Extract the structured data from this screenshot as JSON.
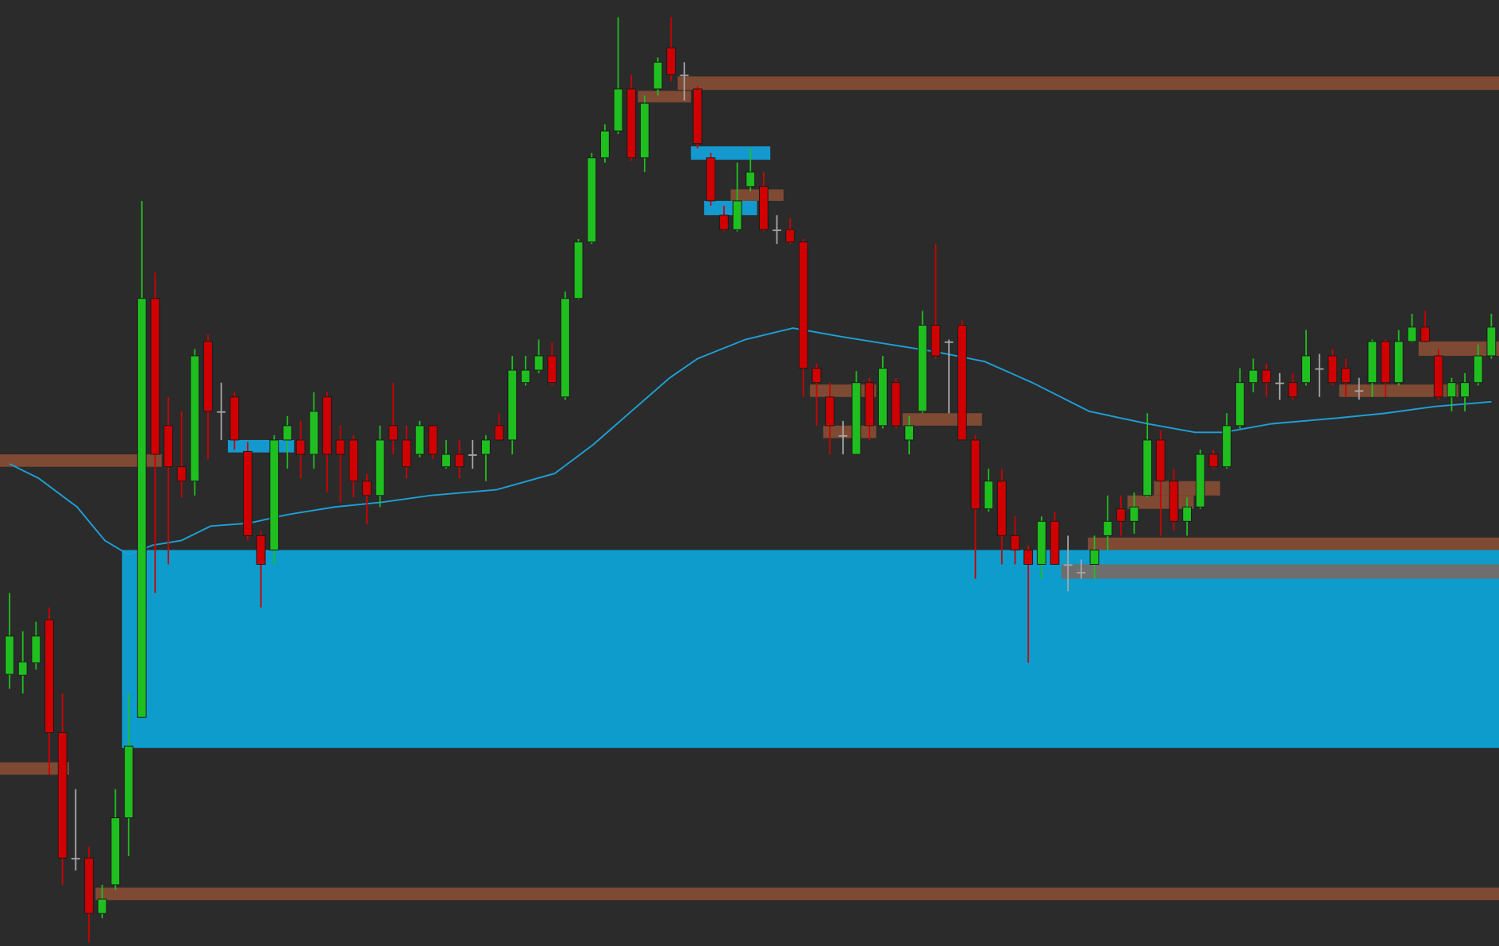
{
  "chart_data": {
    "type": "candlestick",
    "background": "#2b2b2b",
    "ylim": [
      0,
      989
    ],
    "up_color": "#1fbf1f",
    "down_color": "#d00000",
    "doji_color": "#a8a8a8",
    "series": [
      {
        "name": "open",
        "values": [
          284,
          283,
          296,
          341,
          223,
          92,
          92,
          34,
          64,
          134,
          239,
          677,
          544,
          501,
          486,
          632,
          559,
          574,
          517,
          429,
          414,
          529,
          529,
          514,
          574,
          529,
          529,
          486,
          471,
          544,
          529,
          514,
          544,
          501,
          514,
          514,
          514,
          544,
          529,
          589,
          602,
          617,
          574,
          677,
          736,
          824,
          852,
          896,
          824,
          896,
          939,
          911,
          896,
          824,
          764,
          749,
          794,
          794,
          749,
          749,
          736,
          604,
          574,
          534,
          514,
          589,
          544,
          589,
          529,
          559,
          649,
          632,
          649,
          529,
          457,
          486,
          429,
          414,
          399,
          444,
          399,
          391,
          399,
          429,
          457,
          444,
          471,
          529,
          486,
          444,
          459,
          514,
          501,
          544,
          589,
          602,
          589,
          589,
          589,
          604,
          617,
          604,
          581,
          589,
          632,
          589,
          632,
          647,
          617,
          574,
          574,
          589,
          617
        ]
      },
      {
        "name": "high",
        "values": [
          369,
          329,
          339,
          354,
          264,
          164,
          104,
          64,
          164,
          264,
          779,
          704,
          574,
          559,
          624,
          639,
          589,
          579,
          527,
          434,
          534,
          554,
          549,
          579,
          579,
          544,
          534,
          494,
          544,
          589,
          544,
          549,
          544,
          529,
          529,
          529,
          534,
          557,
          617,
          617,
          634,
          631,
          684,
          739,
          829,
          859,
          971,
          911,
          889,
          929,
          971,
          924,
          899,
          829,
          774,
          819,
          834,
          809,
          764,
          761,
          739,
          609,
          589,
          549,
          601,
          594,
          617,
          594,
          554,
          664,
          734,
          634,
          654,
          534,
          499,
          499,
          449,
          419,
          449,
          454,
          429,
          404,
          429,
          471,
          471,
          474,
          557,
          539,
          499,
          469,
          519,
          519,
          557,
          604,
          614,
          609,
          599,
          599,
          644,
          619,
          624,
          614,
          594,
          634,
          634,
          644,
          661,
          664,
          624,
          594,
          599,
          629,
          661
        ]
      },
      {
        "name": "low",
        "values": [
          269,
          264,
          289,
          179,
          64,
          79,
          4,
          29,
          59,
          94,
          239,
          369,
          399,
          469,
          471,
          509,
          529,
          519,
          424,
          354,
          399,
          499,
          489,
          499,
          474,
          464,
          469,
          441,
          459,
          514,
          489,
          511,
          509,
          499,
          489,
          499,
          486,
          529,
          514,
          586,
          599,
          586,
          571,
          676,
          734,
          819,
          849,
          821,
          809,
          889,
          904,
          884,
          834,
          774,
          747,
          747,
          789,
          747,
          734,
          734,
          574,
          544,
          514,
          514,
          514,
          529,
          541,
          541,
          514,
          557,
          614,
          557,
          529,
          384,
          454,
          399,
          399,
          296,
          384,
          399,
          371,
          384,
          384,
          414,
          429,
          431,
          469,
          429,
          434,
          429,
          457,
          499,
          499,
          541,
          579,
          574,
          571,
          571,
          586,
          574,
          586,
          574,
          571,
          574,
          574,
          586,
          631,
          631,
          571,
          559,
          559,
          586,
          614
        ]
      },
      {
        "name": "close",
        "values": [
          324,
          297,
          324,
          223,
          92,
          92,
          34,
          49,
          134,
          209,
          677,
          514,
          501,
          486,
          617,
          559,
          559,
          529,
          429,
          399,
          529,
          544,
          514,
          559,
          514,
          514,
          486,
          471,
          529,
          529,
          501,
          544,
          514,
          514,
          501,
          514,
          529,
          529,
          602,
          602,
          617,
          589,
          677,
          736,
          824,
          852,
          896,
          824,
          881,
          924,
          911,
          911,
          839,
          779,
          749,
          779,
          809,
          749,
          749,
          736,
          604,
          589,
          544,
          534,
          589,
          544,
          604,
          544,
          544,
          649,
          617,
          632,
          529,
          457,
          486,
          429,
          414,
          399,
          444,
          399,
          399,
          391,
          414,
          444,
          444,
          459,
          529,
          486,
          444,
          459,
          514,
          501,
          544,
          589,
          602,
          589,
          589,
          574,
          617,
          604,
          589,
          589,
          581,
          632,
          589,
          632,
          647,
          632,
          574,
          589,
          589,
          617,
          647
        ]
      }
    ],
    "moving_average": {
      "color": "#1e9fd6",
      "x": [
        0,
        2.2,
        5.1,
        7.2,
        9.0,
        10.8,
        13.0,
        15.2,
        18.1,
        21.0,
        24.6,
        28.2,
        31.8,
        36.8,
        41.2,
        44.1,
        47.0,
        49.9,
        52.0,
        55.6,
        59.2,
        62.9,
        66.5,
        70.1,
        73.7,
        77.3,
        81.6,
        86.0,
        89.6,
        91.8,
        95.4,
        100.4,
        104.0,
        107.7,
        112.0
      ],
      "values": [
        504,
        489,
        459,
        424,
        409,
        419,
        424,
        439,
        442,
        451,
        459,
        464,
        471,
        477,
        494,
        524,
        559,
        594,
        614,
        634,
        646,
        637,
        629,
        621,
        611,
        589,
        559,
        546,
        537,
        537,
        546,
        552,
        557,
        564,
        569
      ]
    },
    "zones": [
      {
        "from": 9,
        "top": 414,
        "bottom": 207,
        "color": "#0e9ccc"
      },
      {
        "from": 17,
        "to": 21,
        "top": 529,
        "bottom": 516,
        "color": "#1499cf"
      },
      {
        "from": 52,
        "to": 57,
        "top": 836,
        "bottom": 822,
        "color": "#1499cf"
      },
      {
        "from": 53,
        "to": 56,
        "top": 779,
        "bottom": 764,
        "color": "#1499cf"
      },
      {
        "from": 51,
        "top": 909,
        "bottom": 895,
        "color": "#7f4a33"
      },
      {
        "from": 48,
        "to": 51,
        "top": 894,
        "bottom": 882,
        "color": "#7f4a33"
      },
      {
        "from": 0,
        "to": 11,
        "top": 514,
        "bottom": 501,
        "color": "#7f4a33"
      },
      {
        "from": 0,
        "to": 4,
        "top": 192,
        "bottom": 179,
        "color": "#7f4a33"
      },
      {
        "from": 7,
        "top": 61,
        "bottom": 48,
        "color": "#7f4a33"
      },
      {
        "from": 55,
        "to": 58,
        "top": 791,
        "bottom": 779,
        "color": "#7f4a33"
      },
      {
        "from": 61,
        "to": 65,
        "top": 587,
        "bottom": 574,
        "color": "#7f4a33"
      },
      {
        "from": 62,
        "to": 65,
        "top": 544,
        "bottom": 531,
        "color": "#7f4a33"
      },
      {
        "from": 68,
        "to": 73,
        "top": 557,
        "bottom": 544,
        "color": "#7f4a33"
      },
      {
        "from": 82,
        "top": 427,
        "bottom": 414,
        "color": "#7f4a33"
      },
      {
        "from": 80,
        "top": 399,
        "bottom": 384,
        "color": "#6e6e6e"
      },
      {
        "from": 87,
        "to": 91,
        "top": 486,
        "bottom": 471,
        "color": "#7f4a33"
      },
      {
        "from": 85,
        "to": 89,
        "top": 471,
        "bottom": 457,
        "color": "#7f4a33"
      },
      {
        "from": 101,
        "to": 109,
        "top": 587,
        "bottom": 574,
        "color": "#7f4a33"
      },
      {
        "from": 107,
        "top": 632,
        "bottom": 617,
        "color": "#7f4a33"
      }
    ]
  }
}
